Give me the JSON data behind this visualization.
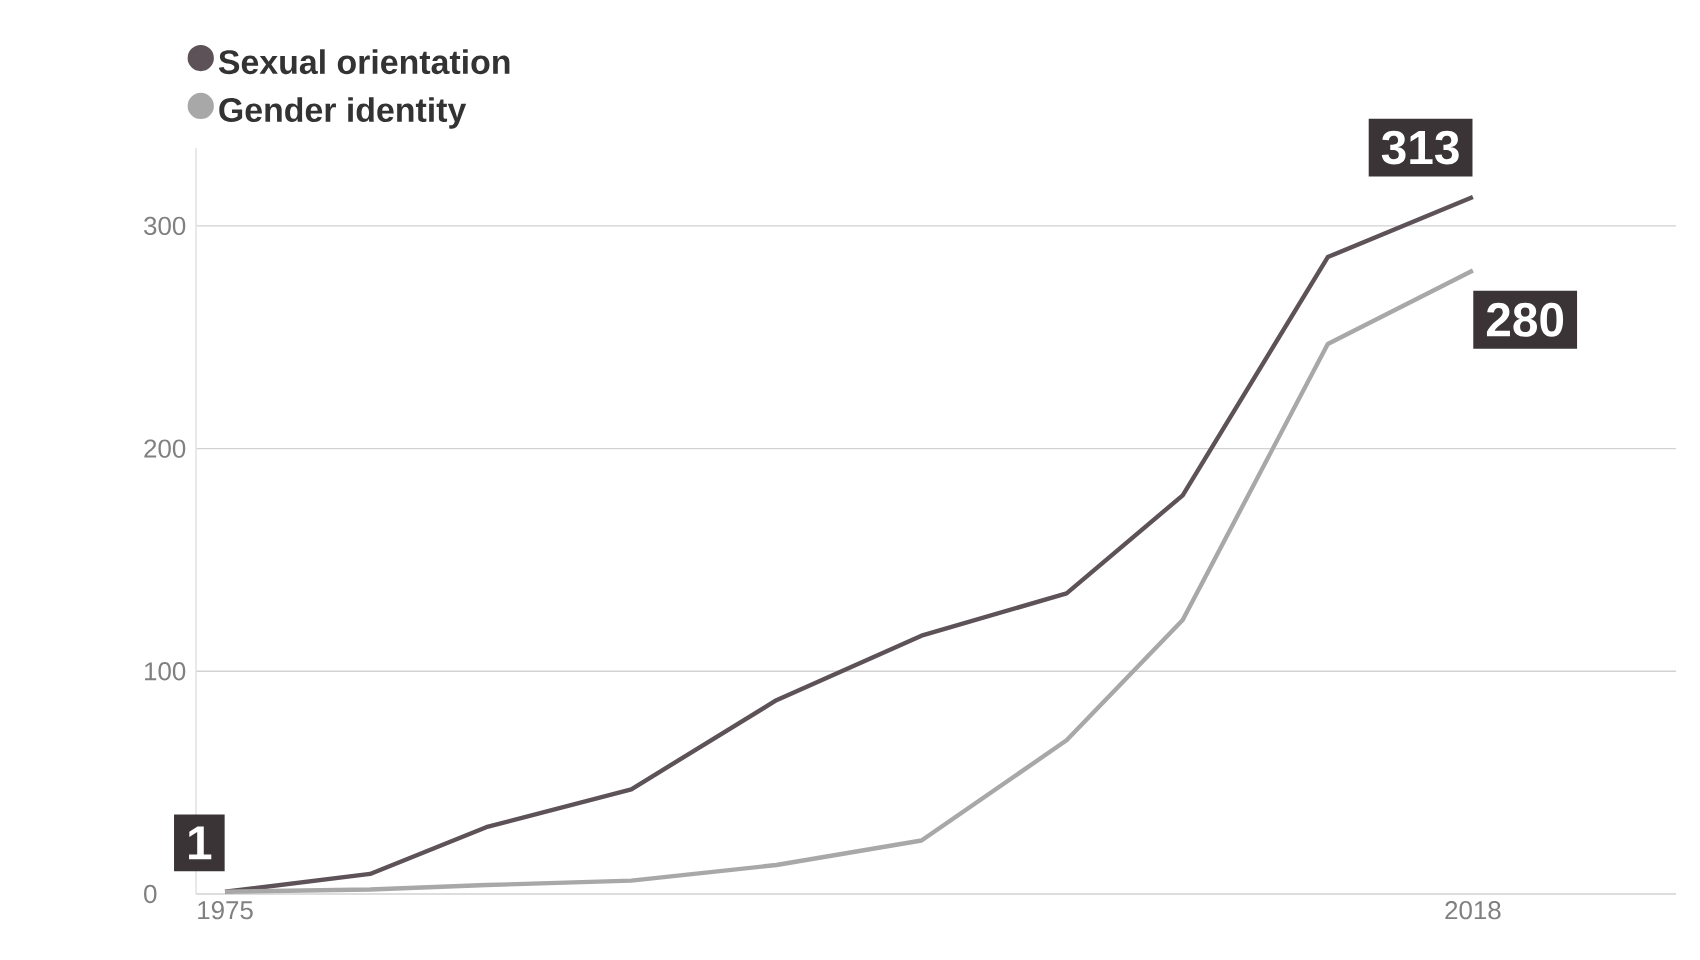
{
  "chart_data": {
    "type": "line",
    "series": [
      {
        "name": "Sexual orientation",
        "color": "#5c5257",
        "x": [
          1975,
          1980,
          1984,
          1989,
          1994,
          1999,
          2004,
          2008,
          2013,
          2018
        ],
        "values": [
          1,
          9,
          30,
          47,
          87,
          116,
          135,
          179,
          286,
          313
        ],
        "value_labels": [
          "1",
          null,
          null,
          null,
          null,
          null,
          null,
          null,
          null,
          "313"
        ]
      },
      {
        "name": "Gender identity",
        "color": "#a8a8a8",
        "x": [
          1975,
          1980,
          1984,
          1989,
          1994,
          1999,
          2004,
          2008,
          2013,
          2018
        ],
        "values": [
          1,
          2,
          4,
          6,
          13,
          24,
          69,
          123,
          247,
          280
        ],
        "value_labels": [
          null,
          null,
          null,
          null,
          null,
          null,
          null,
          null,
          null,
          "280"
        ]
      }
    ],
    "xlim": [
      1974,
      2025
    ],
    "xticks": [
      1975,
      2018
    ],
    "ylim": [
      0,
      335
    ],
    "yticks": [
      0,
      100,
      200,
      300
    ],
    "grid": "y",
    "legend": "top left",
    "marker": "none",
    "line_style": "solid"
  }
}
